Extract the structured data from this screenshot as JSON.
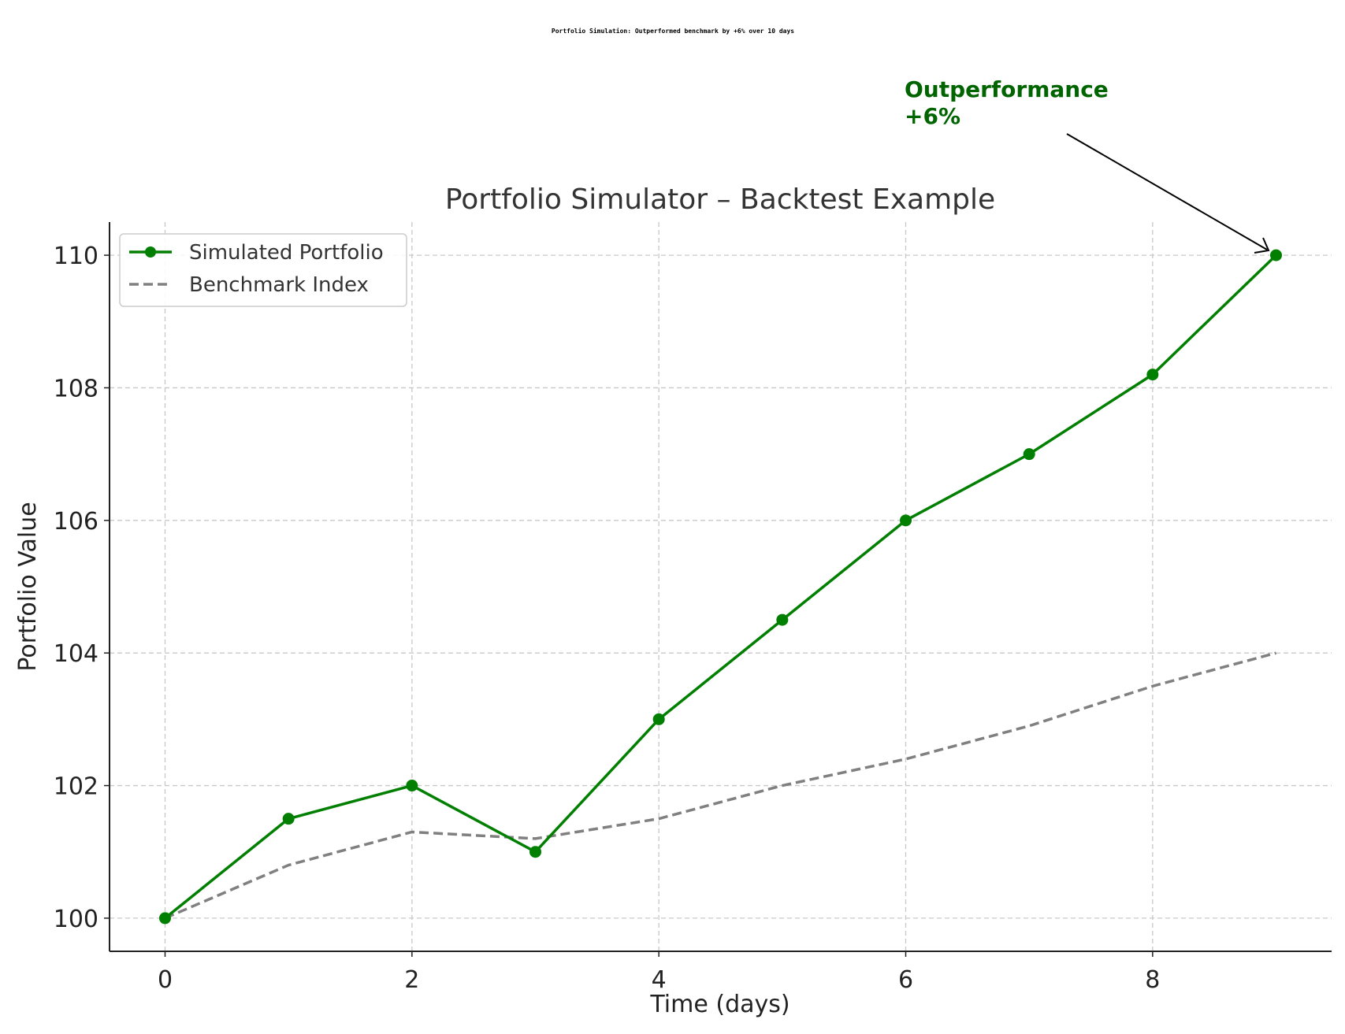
{
  "caption": "Portfolio Simulation: Outperformed benchmark by +6% over 10 days",
  "chart_data": {
    "type": "line",
    "title": "Portfolio Simulator – Backtest Example",
    "xlabel": "Time (days)",
    "ylabel": "Portfolio Value",
    "xlim": [
      -0.45,
      9.45
    ],
    "ylim": [
      99.5,
      110.5
    ],
    "xticks": [
      0,
      2,
      4,
      6,
      8
    ],
    "yticks": [
      100,
      102,
      104,
      106,
      108,
      110
    ],
    "grid": true,
    "legend_position": "top-left",
    "series": [
      {
        "name": "Simulated Portfolio",
        "color": "#007f00",
        "style": "solid",
        "marker": "circle",
        "x": [
          0,
          1,
          2,
          3,
          4,
          5,
          6,
          7,
          8,
          9
        ],
        "y": [
          100,
          101.5,
          102,
          101,
          103,
          104.5,
          106,
          107,
          108.2,
          110
        ]
      },
      {
        "name": "Benchmark Index",
        "color": "#808080",
        "style": "dashed",
        "marker": "none",
        "x": [
          0,
          1,
          2,
          3,
          4,
          5,
          6,
          7,
          8,
          9
        ],
        "y": [
          100,
          100.8,
          101.3,
          101.2,
          101.5,
          102,
          102.4,
          102.9,
          103.5,
          104
        ]
      }
    ],
    "annotation": {
      "text_lines": [
        "Outperformance",
        "+6%"
      ],
      "color": "#006400",
      "target": {
        "x": 9,
        "y": 110
      }
    }
  }
}
